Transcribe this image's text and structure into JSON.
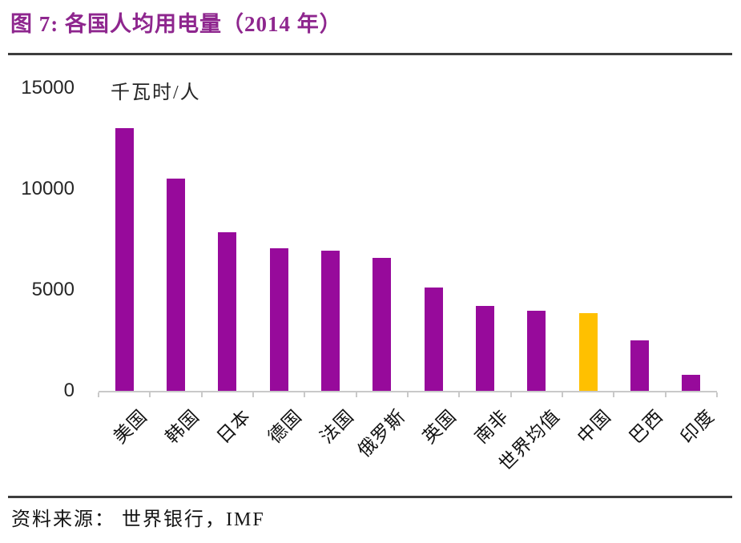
{
  "header": {
    "title": "图 7: 各国人均用电量（2014 年）",
    "title_color": "#8e268e"
  },
  "footer": {
    "source": "资料来源： 世界银行，IMF"
  },
  "chart_data": {
    "type": "bar",
    "title": "各国人均用电量（2014 年）",
    "unit_label": "千瓦时/人",
    "categories": [
      "美国",
      "韩国",
      "日本",
      "德国",
      "法国",
      "俄罗斯",
      "英国",
      "南非",
      "世界均值",
      "中国",
      "巴西",
      "印度"
    ],
    "values": [
      13000,
      10500,
      7850,
      7050,
      6950,
      6600,
      5100,
      4200,
      3950,
      3850,
      2500,
      800
    ],
    "highlight_category": "中国",
    "bar_color": "#970a9b",
    "highlight_color": "#ffc000",
    "axis_color": "#c9c9c9",
    "ylim": [
      0,
      15000
    ],
    "yticks": [
      0,
      5000,
      10000,
      15000
    ],
    "xlabel": "",
    "ylabel": "千瓦时/人",
    "grid": false,
    "legend": "none",
    "x_tick_rotation_deg": 45
  }
}
